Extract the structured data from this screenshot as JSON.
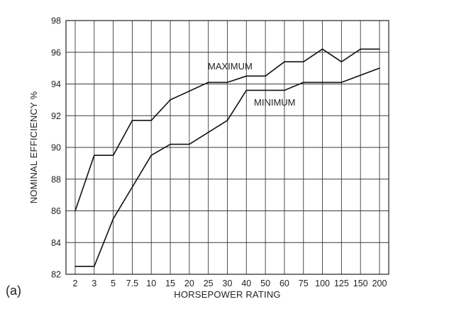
{
  "panel_label": "(a)",
  "chart_data": {
    "type": "line",
    "title": "",
    "xlabel": "HORSEPOWER RATING",
    "ylabel": "NOMINAL EFFICIENCY %",
    "categories": [
      "2",
      "3",
      "5",
      "7.5",
      "10",
      "15",
      "20",
      "25",
      "30",
      "40",
      "50",
      "60",
      "75",
      "100",
      "125",
      "150",
      "200"
    ],
    "ylim": [
      82,
      98
    ],
    "yticks": [
      82,
      84,
      86,
      88,
      90,
      92,
      94,
      96,
      98
    ],
    "grid": true,
    "series": [
      {
        "name": "MAXIMUM",
        "steps": [
          {
            "from": "2",
            "to": "3",
            "y0": 86.0,
            "y1": 89.5
          },
          {
            "from": "3",
            "to": "5",
            "y0": 89.5,
            "y1": 89.5
          },
          {
            "from": "5",
            "to": "7.5",
            "y0": 89.5,
            "y1": 91.7
          },
          {
            "from": "7.5",
            "to": "10",
            "y0": 91.7,
            "y1": 91.7
          },
          {
            "from": "10",
            "to": "15",
            "y0": 91.7,
            "y1": 93.0
          },
          {
            "from": "15",
            "to": "25",
            "y0": 93.0,
            "y1": 94.1
          },
          {
            "from": "25",
            "to": "30",
            "y0": 94.1,
            "y1": 94.1
          },
          {
            "from": "30",
            "to": "40",
            "y0": 94.1,
            "y1": 94.5
          },
          {
            "from": "40",
            "to": "50",
            "y0": 94.5,
            "y1": 94.5
          },
          {
            "from": "50",
            "to": "60",
            "y0": 94.5,
            "y1": 95.4
          },
          {
            "from": "60",
            "to": "75",
            "y0": 95.4,
            "y1": 95.4
          },
          {
            "from": "75",
            "to": "100",
            "y0": 95.4,
            "y1": 96.2
          },
          {
            "from": "100",
            "to": "125",
            "y0": 96.2,
            "y1": 95.4
          },
          {
            "from": "125",
            "to": "150",
            "y0": 95.4,
            "y1": 96.2
          },
          {
            "from": "150",
            "to": "200",
            "y0": 96.2,
            "y1": 96.2
          }
        ]
      },
      {
        "name": "MINIMUM",
        "steps": [
          {
            "from": "2",
            "to": "3",
            "y0": 82.5,
            "y1": 82.5
          },
          {
            "from": "3",
            "to": "5",
            "y0": 82.5,
            "y1": 85.5
          },
          {
            "from": "5",
            "to": "10",
            "y0": 85.5,
            "y1": 89.5
          },
          {
            "from": "10",
            "to": "15",
            "y0": 89.5,
            "y1": 90.2
          },
          {
            "from": "15",
            "to": "20",
            "y0": 90.2,
            "y1": 90.2
          },
          {
            "from": "20",
            "to": "30",
            "y0": 90.2,
            "y1": 91.7
          },
          {
            "from": "30",
            "to": "40",
            "y0": 91.7,
            "y1": 93.6
          },
          {
            "from": "40",
            "to": "60",
            "y0": 93.6,
            "y1": 93.6
          },
          {
            "from": "60",
            "to": "75",
            "y0": 93.6,
            "y1": 94.1
          },
          {
            "from": "75",
            "to": "125",
            "y0": 94.1,
            "y1": 94.1
          },
          {
            "from": "125",
            "to": "200",
            "y0": 94.1,
            "y1": 95.0
          }
        ]
      }
    ]
  }
}
